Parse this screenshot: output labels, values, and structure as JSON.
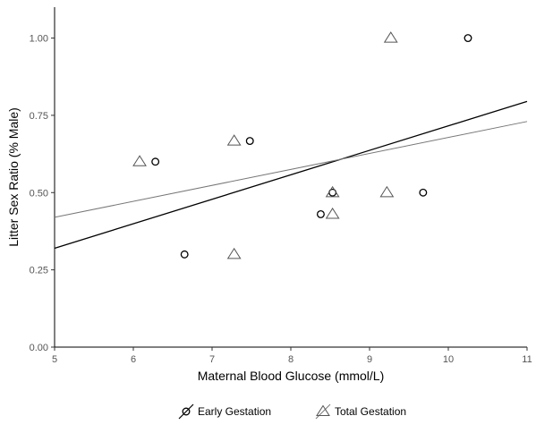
{
  "chart_data": {
    "type": "scatter",
    "title": "",
    "xlabel": "Maternal Blood Glucose (mmol/L)",
    "ylabel": "Litter Sex Ratio (% Male)",
    "xlim": [
      5,
      11
    ],
    "ylim": [
      0,
      1.1
    ],
    "xticks": [
      5,
      6,
      7,
      8,
      9,
      10,
      11
    ],
    "xtick_labels": [
      "5",
      "6",
      "7",
      "8",
      "9",
      "10",
      "11"
    ],
    "yticks": [
      0,
      0.25,
      0.5,
      0.75,
      1.0
    ],
    "ytick_labels": [
      "0.00",
      "0.25",
      "0.50",
      "0.75",
      "1.00"
    ],
    "grid": false,
    "legend_position": "bottom",
    "series": [
      {
        "name": "Early Gestation",
        "marker": "circle",
        "color": "#000000",
        "points": [
          {
            "x": 6.28,
            "y": 0.6
          },
          {
            "x": 6.65,
            "y": 0.3
          },
          {
            "x": 7.48,
            "y": 0.667
          },
          {
            "x": 8.38,
            "y": 0.43
          },
          {
            "x": 8.53,
            "y": 0.5
          },
          {
            "x": 9.68,
            "y": 0.5
          },
          {
            "x": 10.25,
            "y": 1.0
          }
        ],
        "trendline": {
          "x": [
            5,
            11
          ],
          "y": [
            0.32,
            0.795
          ],
          "color": "#000000"
        }
      },
      {
        "name": "Total Gestation",
        "marker": "triangle",
        "color": "#555555",
        "points": [
          {
            "x": 6.08,
            "y": 0.6
          },
          {
            "x": 7.28,
            "y": 0.667
          },
          {
            "x": 7.28,
            "y": 0.3
          },
          {
            "x": 8.53,
            "y": 0.5
          },
          {
            "x": 8.53,
            "y": 0.43
          },
          {
            "x": 9.22,
            "y": 0.5
          },
          {
            "x": 9.27,
            "y": 1.0
          }
        ],
        "trendline": {
          "x": [
            5,
            11
          ],
          "y": [
            0.42,
            0.73
          ],
          "color": "#777777"
        }
      }
    ]
  }
}
